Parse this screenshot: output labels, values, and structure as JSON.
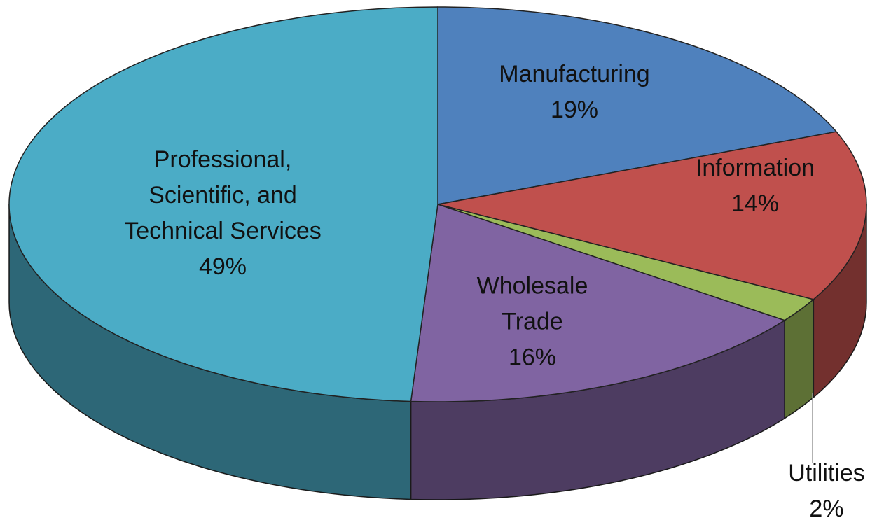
{
  "chart_data": {
    "type": "pie",
    "categories": [
      "Manufacturing",
      "Information",
      "Utilities",
      "Wholesale Trade",
      "Professional, Scientific, and Technical Services"
    ],
    "values": [
      19,
      14,
      2,
      16,
      49
    ],
    "value_labels": [
      "19%",
      "14%",
      "2%",
      "16%",
      "49%"
    ],
    "colors": [
      "#4f81bd",
      "#c0504d",
      "#9bbb59",
      "#8064a2",
      "#4bacc6"
    ]
  }
}
